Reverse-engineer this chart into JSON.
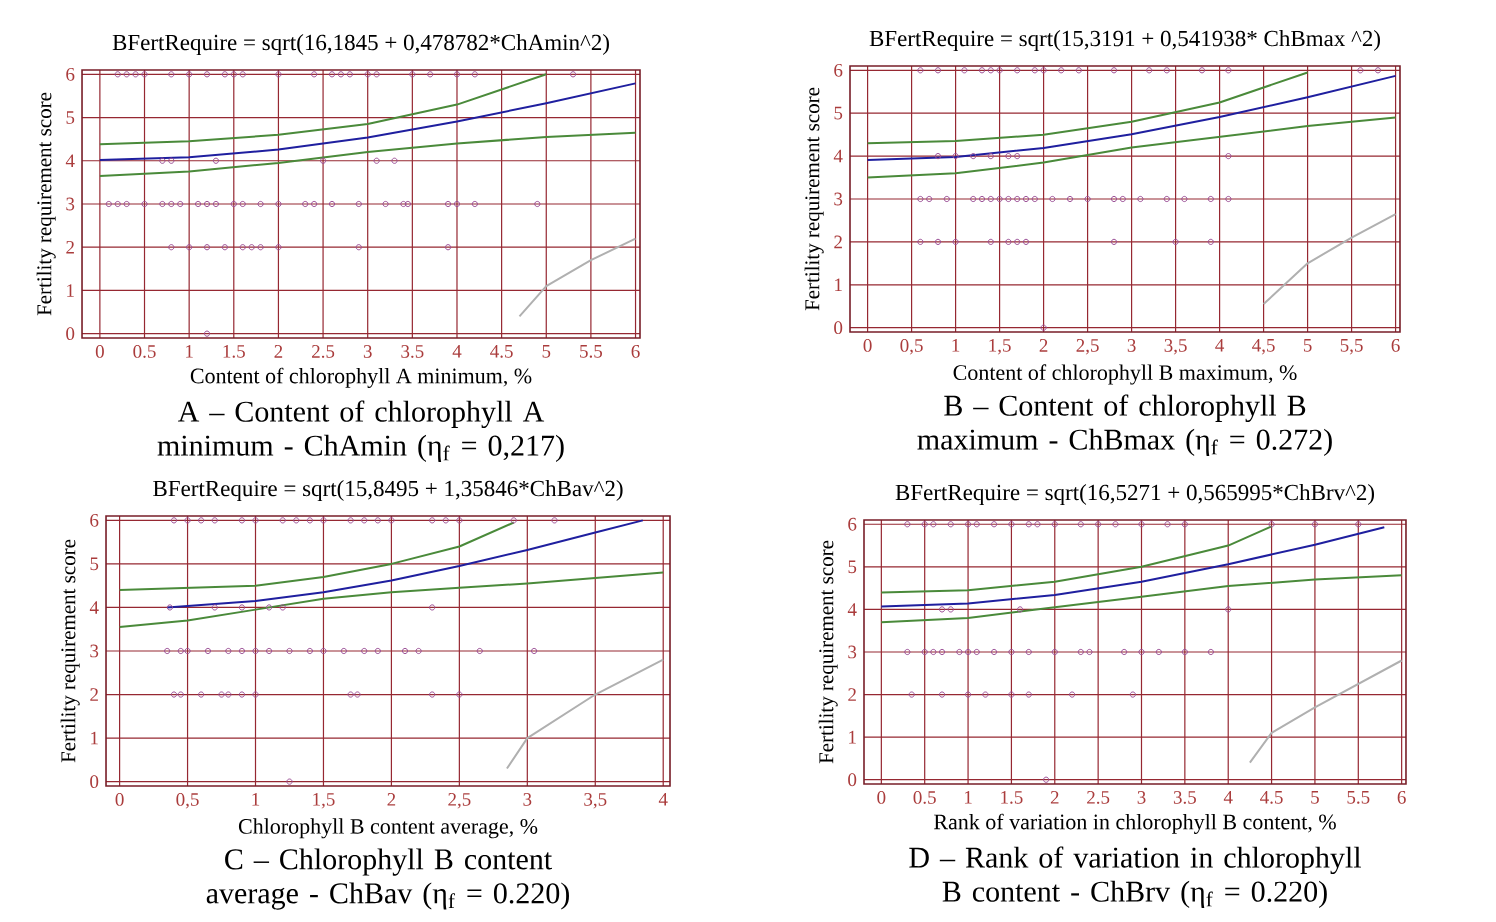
{
  "chart_data": [
    {
      "type": "scatter",
      "title": "BFertRequire = sqrt(16,1845 + 0,478782*ChAmin^2)",
      "xlabel": "Content of chlorophyll A minimum, %",
      "ylabel": "Fertility requirement score",
      "annotations": [
        "A – Content of chlorophyll A minimum - ChAmin (η$_{f}$ = 0,217)"
      ],
      "xlim": [
        -0.2,
        6.05
      ],
      "ylim": [
        -0.1,
        6.1
      ],
      "xticks": [
        0,
        0.5,
        1,
        1.5,
        2,
        2.5,
        3,
        3.5,
        4,
        4.5,
        5,
        5.5,
        6
      ],
      "yticks": [
        0,
        1,
        2,
        3,
        4,
        5,
        6
      ],
      "grid": true,
      "series": [
        {
          "marker": "circle",
          "color": "#9b4f96",
          "x": [
            0.2,
            0.3,
            0.4,
            0.5,
            0.8,
            1.0,
            1.2,
            1.4,
            1.5,
            1.6,
            2.0,
            2.4,
            2.6,
            2.7,
            2.8,
            3.0,
            3.1,
            3.5,
            3.7,
            4.0,
            4.2,
            5.3,
            0.7,
            0.8,
            1.3,
            2.5,
            3.1,
            3.3,
            0.1,
            0.2,
            0.3,
            0.5,
            0.7,
            0.8,
            0.9,
            1.1,
            1.2,
            1.3,
            1.5,
            1.6,
            1.8,
            2.0,
            2.3,
            2.4,
            2.6,
            2.9,
            3.2,
            3.4,
            3.45,
            3.9,
            4.0,
            4.2,
            4.9,
            0.8,
            1.0,
            1.2,
            1.4,
            1.6,
            1.7,
            1.8,
            2.0,
            2.9,
            3.9,
            1.2
          ],
          "values": [
            6,
            6,
            6,
            6,
            6,
            6,
            6,
            6,
            6,
            6,
            6,
            6,
            6,
            6,
            6,
            6,
            6,
            6,
            6,
            6,
            6,
            6,
            4,
            4,
            4,
            4,
            4,
            4,
            3,
            3,
            3,
            3,
            3,
            3,
            3,
            3,
            3,
            3,
            3,
            3,
            3,
            3,
            3,
            3,
            3,
            3,
            3,
            3,
            3,
            3,
            3,
            3,
            3,
            2,
            2,
            2,
            2,
            2,
            2,
            2,
            2,
            2,
            2,
            0
          ]
        },
        {
          "type": "line",
          "color": "#1f1f9f",
          "x": [
            0,
            1,
            2,
            3,
            4,
            5,
            6
          ],
          "values": [
            4.02,
            4.08,
            4.26,
            4.54,
            4.91,
            5.33,
            5.79
          ]
        },
        {
          "type": "line",
          "color": "#4a8a3a",
          "x": [
            0,
            1,
            2,
            3,
            4,
            5
          ],
          "values": [
            4.38,
            4.45,
            4.6,
            4.85,
            5.3,
            6.0
          ]
        },
        {
          "type": "line",
          "color": "#4a8a3a",
          "x": [
            0,
            1,
            2,
            3,
            4,
            5,
            6
          ],
          "values": [
            3.65,
            3.75,
            3.95,
            4.2,
            4.4,
            4.55,
            4.65
          ]
        },
        {
          "type": "line",
          "color": "#b0b0b0",
          "x": [
            4.7,
            5,
            5.5,
            6
          ],
          "values": [
            0.4,
            1.1,
            1.7,
            2.2
          ]
        }
      ]
    },
    {
      "type": "scatter",
      "title": "BFertRequire = sqrt(15,3191 + 0,541938* ChBmax ^2)",
      "xlabel": "Content of chlorophyll B maximum, %",
      "ylabel": "Fertility requirement score",
      "annotations": [
        "B – Content of chlorophyll B maximum - ChBmax (η$_{f}$ = 0.272)"
      ],
      "xlim": [
        -0.2,
        6.05
      ],
      "ylim": [
        -0.1,
        6.1
      ],
      "xticks": [
        0,
        {
          "value": 0.5,
          "label": "0,5"
        },
        1,
        {
          "value": 1.5,
          "label": "1,5"
        },
        2,
        {
          "value": 2.5,
          "label": "2,5"
        },
        3,
        {
          "value": 3.5,
          "label": "3,5"
        },
        4,
        {
          "value": 4.5,
          "label": "4,5"
        },
        5,
        {
          "value": 5.5,
          "label": "5,5"
        },
        6
      ],
      "yticks": [
        0,
        1,
        2,
        3,
        4,
        5,
        6
      ],
      "grid": true,
      "series": [
        {
          "marker": "circle",
          "color": "#9b4f96",
          "x": [
            0.6,
            0.8,
            1.1,
            1.3,
            1.4,
            1.5,
            1.7,
            1.9,
            2.0,
            2.2,
            2.4,
            2.8,
            3.2,
            3.4,
            3.8,
            4.1,
            5.6,
            5.8,
            0.8,
            1.0,
            1.2,
            1.4,
            1.6,
            1.7,
            4.1,
            0.6,
            0.7,
            0.9,
            1.2,
            1.3,
            1.4,
            1.5,
            1.6,
            1.7,
            1.8,
            1.9,
            2.1,
            2.3,
            2.5,
            2.8,
            2.9,
            3.1,
            3.4,
            3.6,
            3.9,
            4.1,
            0.6,
            0.8,
            1.0,
            1.4,
            1.6,
            1.7,
            1.8,
            2.8,
            3.5,
            3.9,
            2.0
          ],
          "values": [
            6,
            6,
            6,
            6,
            6,
            6,
            6,
            6,
            6,
            6,
            6,
            6,
            6,
            6,
            6,
            6,
            6,
            6,
            4,
            4,
            4,
            4,
            4,
            4,
            4,
            3,
            3,
            3,
            3,
            3,
            3,
            3,
            3,
            3,
            3,
            3,
            3,
            3,
            3,
            3,
            3,
            3,
            3,
            3,
            3,
            3,
            2,
            2,
            2,
            2,
            2,
            2,
            2,
            2,
            2,
            2,
            0
          ]
        },
        {
          "type": "line",
          "color": "#1f1f9f",
          "x": [
            0,
            1,
            2,
            3,
            4,
            5,
            6
          ],
          "values": [
            3.91,
            3.98,
            4.19,
            4.51,
            4.91,
            5.37,
            5.87
          ]
        },
        {
          "type": "line",
          "color": "#4a8a3a",
          "x": [
            0,
            1,
            2,
            3,
            4,
            5
          ],
          "values": [
            4.3,
            4.35,
            4.5,
            4.8,
            5.25,
            5.95
          ]
        },
        {
          "type": "line",
          "color": "#4a8a3a",
          "x": [
            0,
            1,
            2,
            3,
            4,
            5,
            6
          ],
          "values": [
            3.5,
            3.6,
            3.85,
            4.2,
            4.45,
            4.7,
            4.9
          ]
        },
        {
          "type": "line",
          "color": "#b0b0b0",
          "x": [
            4.5,
            5,
            5.5,
            6
          ],
          "values": [
            0.55,
            1.5,
            2.1,
            2.65
          ]
        }
      ]
    },
    {
      "type": "scatter",
      "title": "BFertRequire = sqrt(15,8495 + 1,35846*ChBav^2)",
      "xlabel": "Chlorophyll B content average, %",
      "ylabel": "Fertility requirement score",
      "annotations": [
        "C – Chlorophyll B content average - ChBav (η$_{f}$ = 0.220)"
      ],
      "xlim": [
        -0.1,
        4.05
      ],
      "ylim": [
        -0.1,
        6.1
      ],
      "xticks": [
        0,
        {
          "value": 0.5,
          "label": "0,5"
        },
        1,
        {
          "value": 1.5,
          "label": "1,5"
        },
        2,
        {
          "value": 2.5,
          "label": "2,5"
        },
        3,
        {
          "value": 3.5,
          "label": "3,5"
        },
        4
      ],
      "yticks": [
        0,
        1,
        2,
        3,
        4,
        5,
        6
      ],
      "grid": true,
      "series": [
        {
          "marker": "circle",
          "color": "#9b4f96",
          "x": [
            0.4,
            0.5,
            0.6,
            0.7,
            0.9,
            1.0,
            1.2,
            1.3,
            1.4,
            1.5,
            1.7,
            1.8,
            1.9,
            2.0,
            2.3,
            2.4,
            2.5,
            2.9,
            3.2,
            0.37,
            0.7,
            0.9,
            1.1,
            1.2,
            2.3,
            0.35,
            0.45,
            0.5,
            0.65,
            0.8,
            0.9,
            1.0,
            1.1,
            1.25,
            1.4,
            1.5,
            1.65,
            1.8,
            1.9,
            2.1,
            2.2,
            2.65,
            3.05,
            0.4,
            0.45,
            0.6,
            0.75,
            0.8,
            0.9,
            1.0,
            1.7,
            1.75,
            2.3,
            2.5,
            1.25
          ],
          "values": [
            6,
            6,
            6,
            6,
            6,
            6,
            6,
            6,
            6,
            6,
            6,
            6,
            6,
            6,
            6,
            6,
            6,
            6,
            6,
            4,
            4,
            4,
            4,
            4,
            4,
            3,
            3,
            3,
            3,
            3,
            3,
            3,
            3,
            3,
            3,
            3,
            3,
            3,
            3,
            3,
            3,
            3,
            3,
            2,
            2,
            2,
            2,
            2,
            2,
            2,
            2,
            2,
            2,
            2,
            0
          ]
        },
        {
          "type": "line",
          "color": "#1f1f9f",
          "x": [
            0.35,
            1,
            1.5,
            2,
            2.5,
            3,
            3.5,
            3.85
          ],
          "values": [
            4.0,
            4.15,
            4.35,
            4.62,
            4.95,
            5.32,
            5.72,
            6.0
          ]
        },
        {
          "type": "line",
          "color": "#4a8a3a",
          "x": [
            0,
            1,
            1.5,
            2,
            2.5,
            2.9
          ],
          "values": [
            4.4,
            4.5,
            4.7,
            5.0,
            5.4,
            5.95
          ]
        },
        {
          "type": "line",
          "color": "#4a8a3a",
          "x": [
            0,
            0.5,
            1,
            1.5,
            2,
            2.5,
            3,
            4
          ],
          "values": [
            3.55,
            3.7,
            3.95,
            4.2,
            4.35,
            4.45,
            4.55,
            4.8
          ]
        },
        {
          "type": "line",
          "color": "#b0b0b0",
          "x": [
            2.85,
            3,
            3.5,
            4
          ],
          "values": [
            0.3,
            1.0,
            2.0,
            2.8
          ]
        }
      ]
    },
    {
      "type": "scatter",
      "title": "BFertRequire = sqrt(16,5271 + 0,565995*ChBrv^2)",
      "xlabel": "Rank of variation in chlorophyll B content, %",
      "ylabel": "Fertility requirement score",
      "annotations": [
        "D – Rank of variation in chlorophyll B content - ChBrv (η$_{f}$ = 0.220)"
      ],
      "xlim": [
        -0.2,
        6.05
      ],
      "ylim": [
        -0.1,
        6.1
      ],
      "xticks": [
        0,
        0.5,
        1,
        1.5,
        2,
        2.5,
        3,
        3.5,
        4,
        4.5,
        5,
        5.5,
        6
      ],
      "yticks": [
        0,
        1,
        2,
        3,
        4,
        5,
        6
      ],
      "grid": true,
      "series": [
        {
          "marker": "circle",
          "color": "#9b4f96",
          "x": [
            0.3,
            0.5,
            0.6,
            0.8,
            1.0,
            1.1,
            1.3,
            1.5,
            1.7,
            1.8,
            2.0,
            2.3,
            2.5,
            2.7,
            3.0,
            3.3,
            3.5,
            4.5,
            5.0,
            5.5,
            0.7,
            0.8,
            1.6,
            4.0,
            0.3,
            0.5,
            0.6,
            0.7,
            0.9,
            1.0,
            1.1,
            1.3,
            1.5,
            1.7,
            2.0,
            2.3,
            2.4,
            2.8,
            3.0,
            3.2,
            3.5,
            3.8,
            0.35,
            0.7,
            1.0,
            1.2,
            1.5,
            1.7,
            2.2,
            2.9,
            1.9
          ],
          "values": [
            6,
            6,
            6,
            6,
            6,
            6,
            6,
            6,
            6,
            6,
            6,
            6,
            6,
            6,
            6,
            6,
            6,
            6,
            6,
            6,
            4,
            4,
            4,
            4,
            3,
            3,
            3,
            3,
            3,
            3,
            3,
            3,
            3,
            3,
            3,
            3,
            3,
            3,
            3,
            3,
            3,
            3,
            2,
            2,
            2,
            2,
            2,
            2,
            2,
            2,
            0
          ]
        },
        {
          "type": "line",
          "color": "#1f1f9f",
          "x": [
            0,
            1,
            2,
            3,
            4,
            5,
            5.8
          ],
          "values": [
            4.07,
            4.14,
            4.34,
            4.65,
            5.06,
            5.52,
            5.93
          ]
        },
        {
          "type": "line",
          "color": "#4a8a3a",
          "x": [
            0,
            1,
            2,
            3,
            4,
            4.5
          ],
          "values": [
            4.4,
            4.45,
            4.65,
            5.0,
            5.5,
            5.95
          ]
        },
        {
          "type": "line",
          "color": "#4a8a3a",
          "x": [
            0,
            1,
            2,
            3,
            4,
            5,
            6
          ],
          "values": [
            3.7,
            3.8,
            4.05,
            4.3,
            4.55,
            4.7,
            4.8
          ]
        },
        {
          "type": "line",
          "color": "#b0b0b0",
          "x": [
            4.25,
            4.5,
            5,
            6
          ],
          "values": [
            0.4,
            1.1,
            1.7,
            2.8
          ]
        }
      ]
    }
  ]
}
